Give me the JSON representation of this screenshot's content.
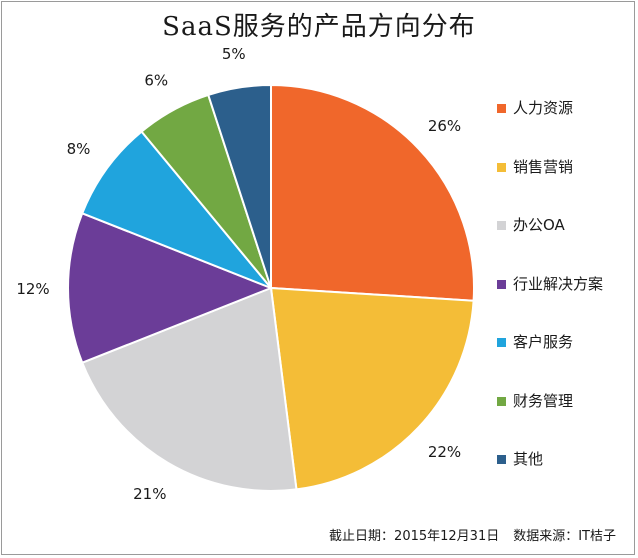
{
  "chart_data": {
    "type": "pie",
    "title": "SaaS服务的产品方向分布",
    "categories": [
      "人力资源",
      "销售营销",
      "办公OA",
      "行业解决方案",
      "客户服务",
      "财务管理",
      "其他"
    ],
    "values": [
      26,
      22,
      21,
      12,
      8,
      6,
      5
    ],
    "value_labels": [
      "26%",
      "22%",
      "21%",
      "12%",
      "8%",
      "6%",
      "5%"
    ],
    "colors": [
      "#f0672b",
      "#f4bd37",
      "#d3d3d5",
      "#6b3d98",
      "#20a4dd",
      "#72a843",
      "#2c5f8c"
    ],
    "legend_position": "right"
  },
  "footer": {
    "date": "截止日期：2015年12月31日",
    "source": "数据来源：IT桔子"
  }
}
